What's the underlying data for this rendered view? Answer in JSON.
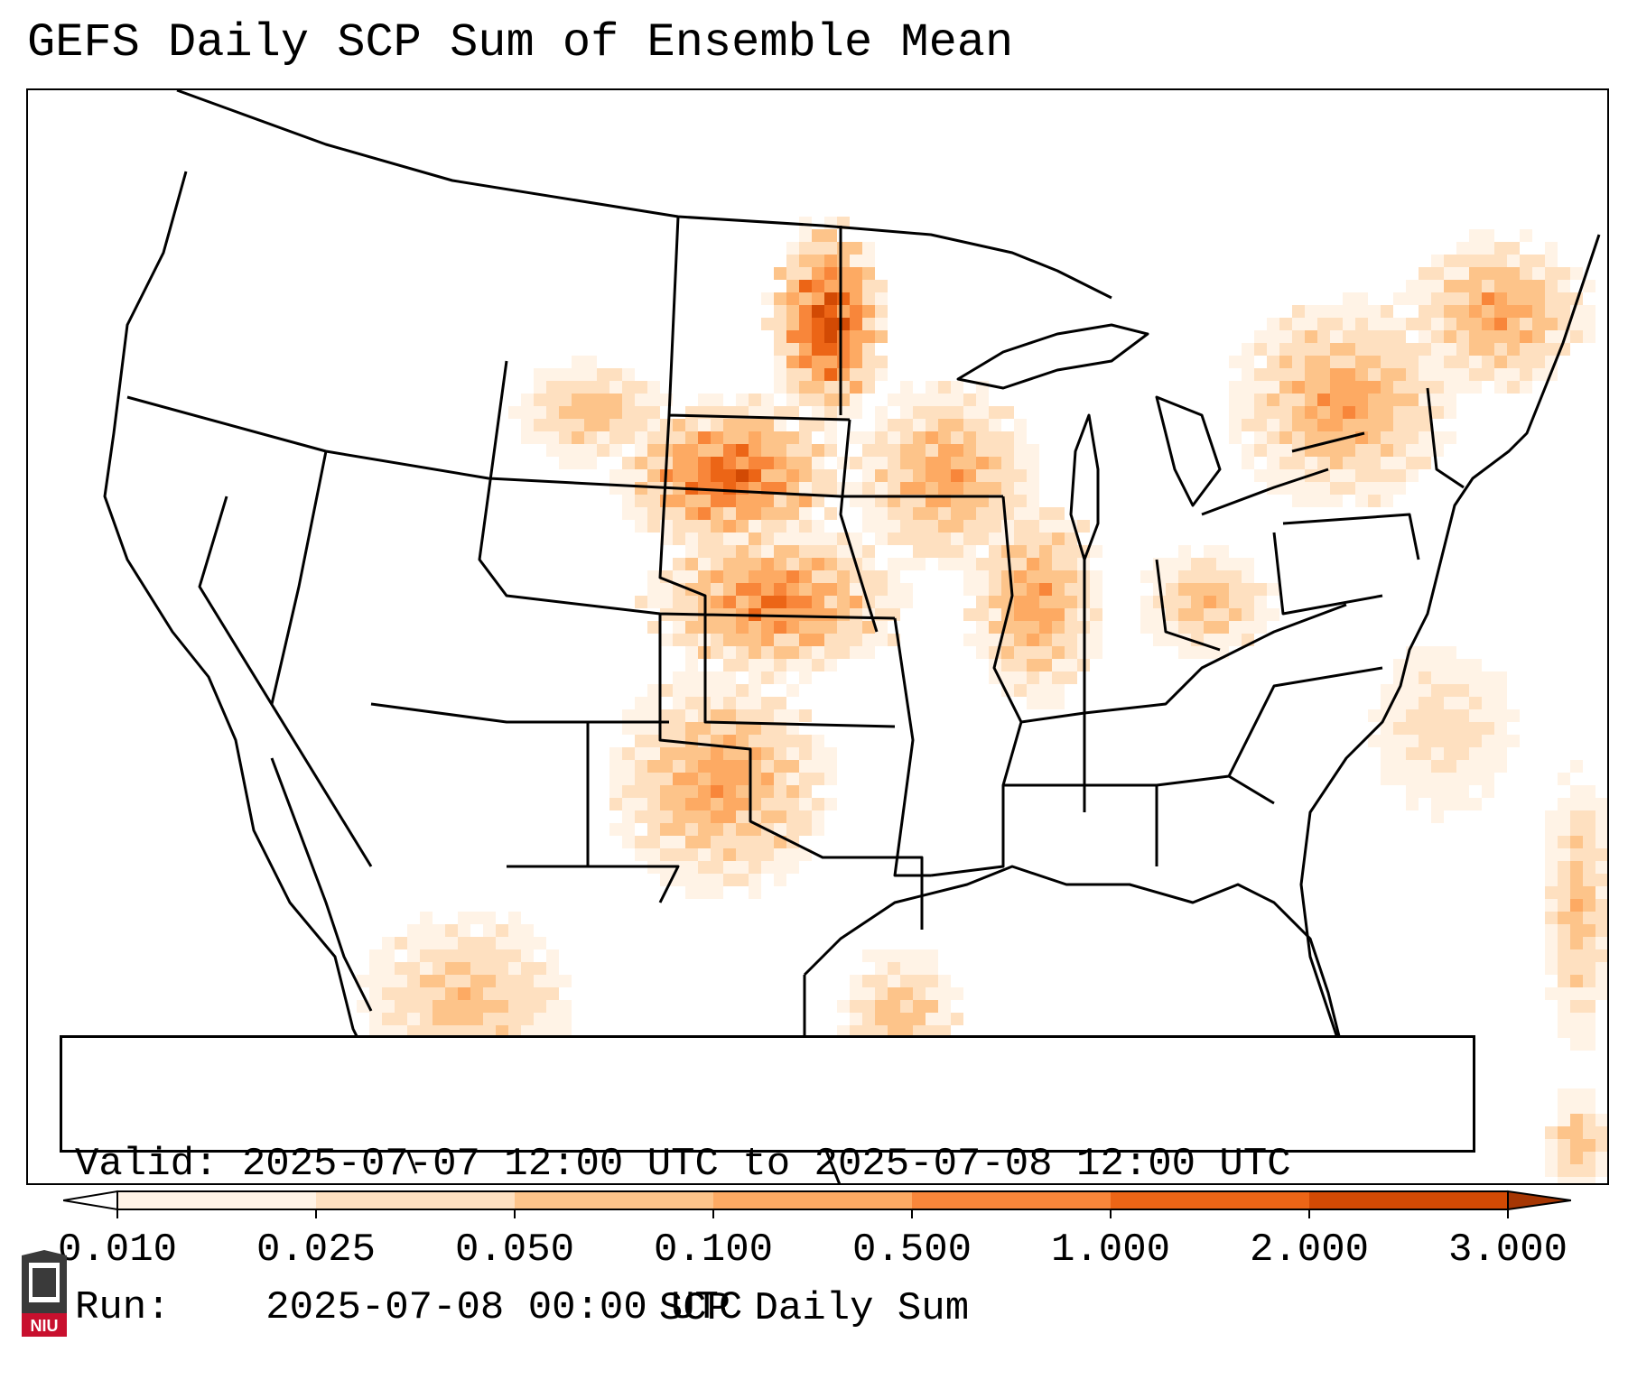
{
  "title": "GEFS Daily SCP Sum of Ensemble Mean",
  "info": {
    "valid_label": "Valid:",
    "valid_value": "2025-07-07 12:00 UTC to 2025-07-08 12:00 UTC",
    "run_label": "Run:",
    "run_value": "2025-07-08 00:00 UTC"
  },
  "colorbar": {
    "label": "SCP Daily Sum",
    "ticks": [
      "0.010",
      "0.025",
      "0.050",
      "0.100",
      "0.500",
      "1.000",
      "2.000",
      "3.000"
    ],
    "colors": [
      "#fff3e6",
      "#fee0c0",
      "#fdc48a",
      "#fdaa63",
      "#f8863a",
      "#ec6516",
      "#d24a04",
      "#a63603"
    ]
  },
  "logo": {
    "text": "NIU",
    "colors": {
      "red": "#c8102e",
      "dark": "#3a3a3a"
    }
  },
  "colors": {
    "state_lines": "#000000",
    "background": "#ffffff"
  }
}
